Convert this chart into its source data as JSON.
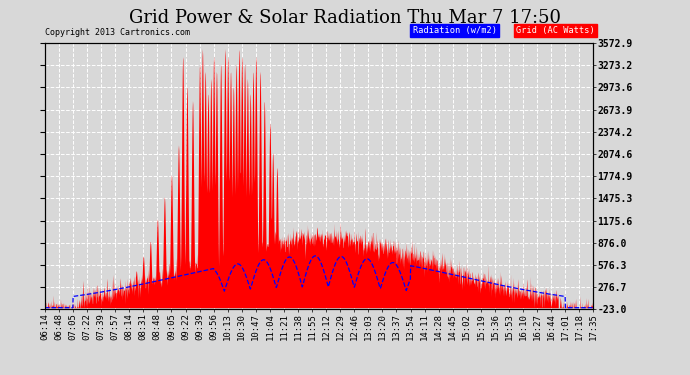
{
  "title": "Grid Power & Solar Radiation Thu Mar 7 17:50",
  "copyright": "Copyright 2013 Cartronics.com",
  "yticks": [
    3572.9,
    3273.2,
    2973.6,
    2673.9,
    2374.2,
    2074.6,
    1774.9,
    1475.3,
    1175.6,
    876.0,
    576.3,
    276.7,
    -23.0
  ],
  "ymin": -23.0,
  "ymax": 3572.9,
  "xtick_labels": [
    "06:14",
    "06:48",
    "07:05",
    "07:22",
    "07:39",
    "07:57",
    "08:14",
    "08:31",
    "08:48",
    "09:05",
    "09:22",
    "09:39",
    "09:56",
    "10:13",
    "10:30",
    "10:47",
    "11:04",
    "11:21",
    "11:38",
    "11:55",
    "12:12",
    "12:29",
    "12:46",
    "13:03",
    "13:20",
    "13:37",
    "13:54",
    "14:11",
    "14:28",
    "14:45",
    "15:02",
    "15:19",
    "15:36",
    "15:53",
    "16:10",
    "16:27",
    "16:44",
    "17:01",
    "17:18",
    "17:35"
  ],
  "bg_color": "#d8d8d8",
  "plot_bg": "#d8d8d8",
  "grid_color": "white",
  "solar_color": "#0000ff",
  "grid_fill_color": "#ff0000",
  "title_fontsize": 13,
  "tick_fontsize": 6.5,
  "ylabel_right_fontsize": 7
}
